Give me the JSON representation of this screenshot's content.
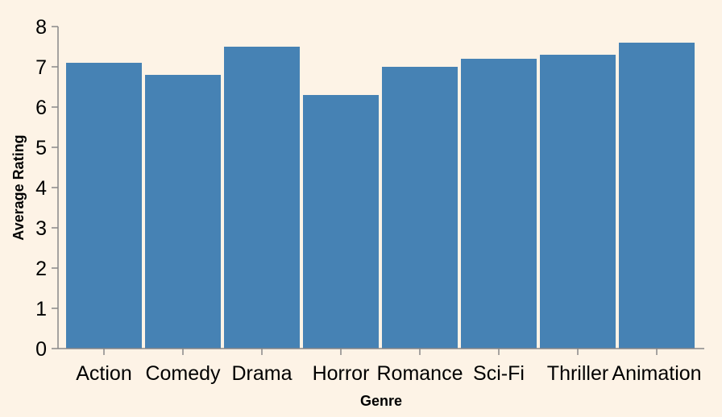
{
  "chart_data": {
    "type": "bar",
    "title": "",
    "xlabel": "Genre",
    "ylabel": "Average Rating",
    "categories": [
      "Action",
      "Comedy",
      "Drama",
      "Horror",
      "Romance",
      "Sci-Fi",
      "Thriller",
      "Animation"
    ],
    "values": [
      7.1,
      6.8,
      7.5,
      6.3,
      7.0,
      7.2,
      7.3,
      7.6
    ],
    "ylim": [
      0,
      8
    ],
    "yticks": [
      0,
      1,
      2,
      3,
      4,
      5,
      6,
      7,
      8
    ],
    "grid": false,
    "legend": "none"
  },
  "colors": {
    "bar": "#4682b4",
    "background": "#fdf3e6",
    "axis": "#888888"
  }
}
